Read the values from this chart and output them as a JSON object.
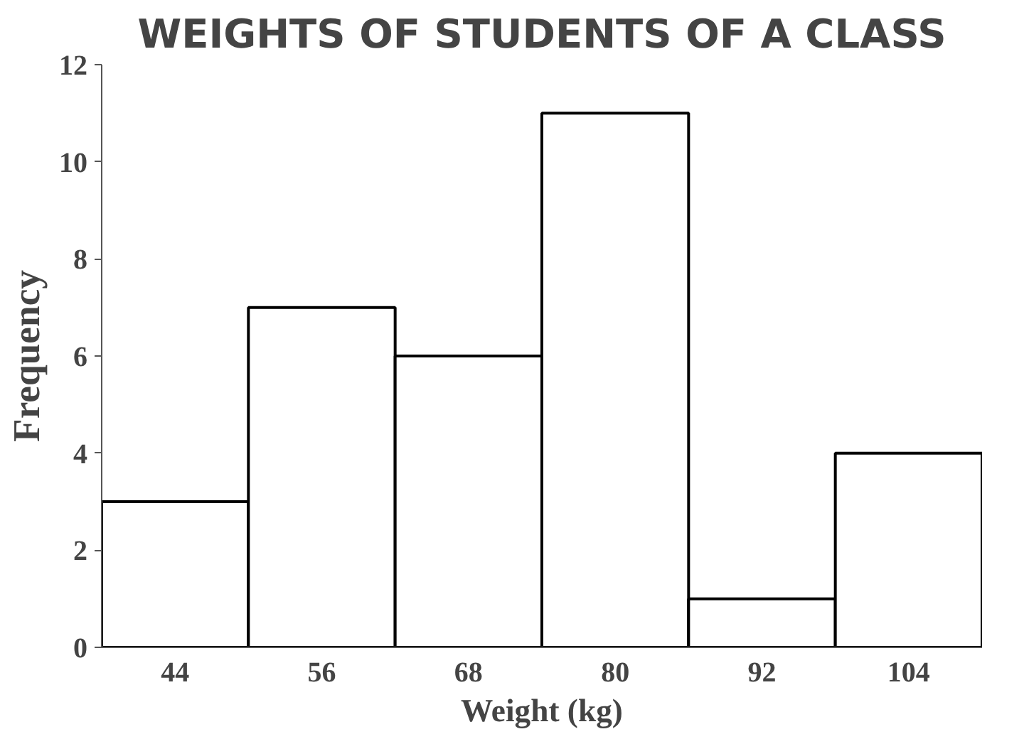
{
  "chart_data": {
    "type": "bar",
    "title": "WEIGHTS OF STUDENTS OF A CLASS",
    "xlabel": "Weight (kg)",
    "ylabel": "Frequency",
    "categories": [
      "44",
      "56",
      "68",
      "80",
      "92",
      "104"
    ],
    "values": [
      3,
      7,
      6,
      11,
      1,
      4
    ],
    "color": "#ffffff",
    "ylim": [
      0,
      12
    ],
    "yticks": [
      0,
      2,
      4,
      6,
      8,
      10,
      12
    ],
    "grid": false
  }
}
